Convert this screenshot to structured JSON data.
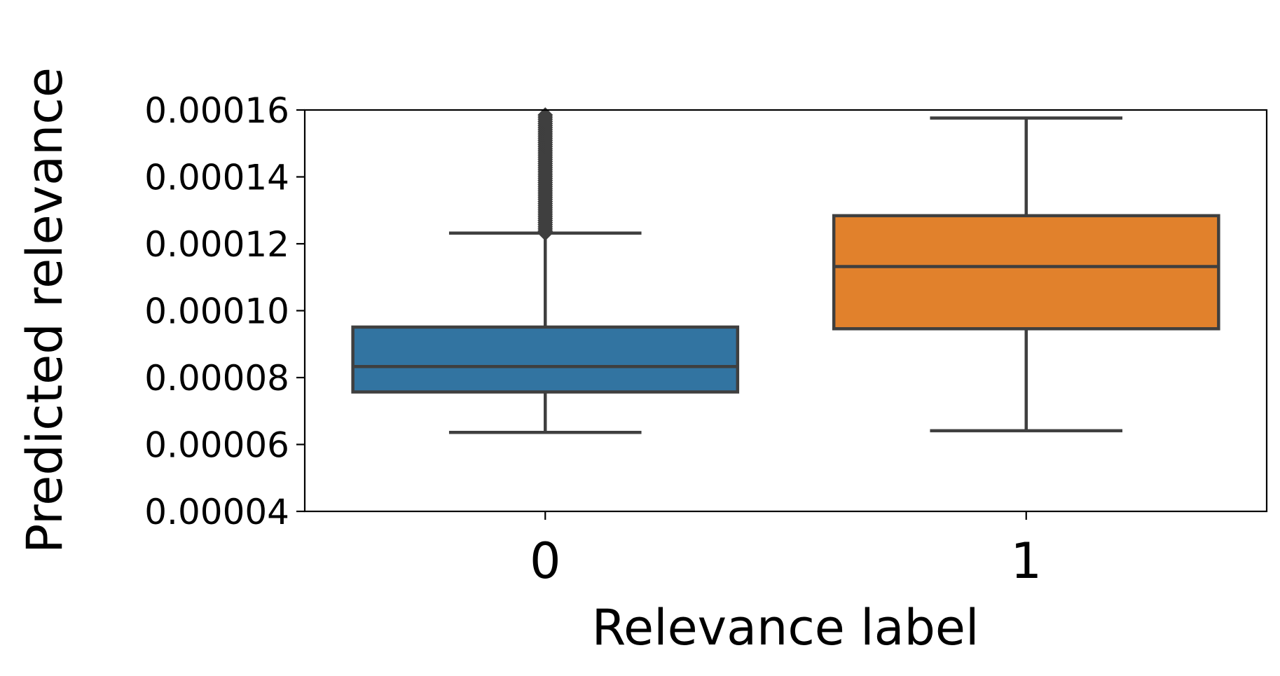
{
  "chart_data": {
    "type": "box",
    "xlabel": "Relevance label",
    "ylabel": "Predicted relevance",
    "categories": [
      "0",
      "1"
    ],
    "ylim": [
      4e-05,
      0.00016
    ],
    "yticks": [
      "0.00004",
      "0.00006",
      "0.00008",
      "0.00010",
      "0.00012",
      "0.00014",
      "0.00016"
    ],
    "grid": false,
    "boxes": [
      {
        "category": "0",
        "whisker_low": 6.36e-05,
        "q1": 7.57e-05,
        "median": 8.33e-05,
        "q3": 9.51e-05,
        "whisker_high": 0.0001232,
        "outliers_range": [
          0.0001232,
          0.0001585
        ],
        "color": "#3274a1"
      },
      {
        "category": "1",
        "whisker_low": 6.41e-05,
        "q1": 9.46e-05,
        "median": 0.0001132,
        "q3": 0.0001284,
        "whisker_high": 0.0001576,
        "outliers_range": null,
        "color": "#e1812c"
      }
    ],
    "edge_color": "#3f3f3f"
  }
}
